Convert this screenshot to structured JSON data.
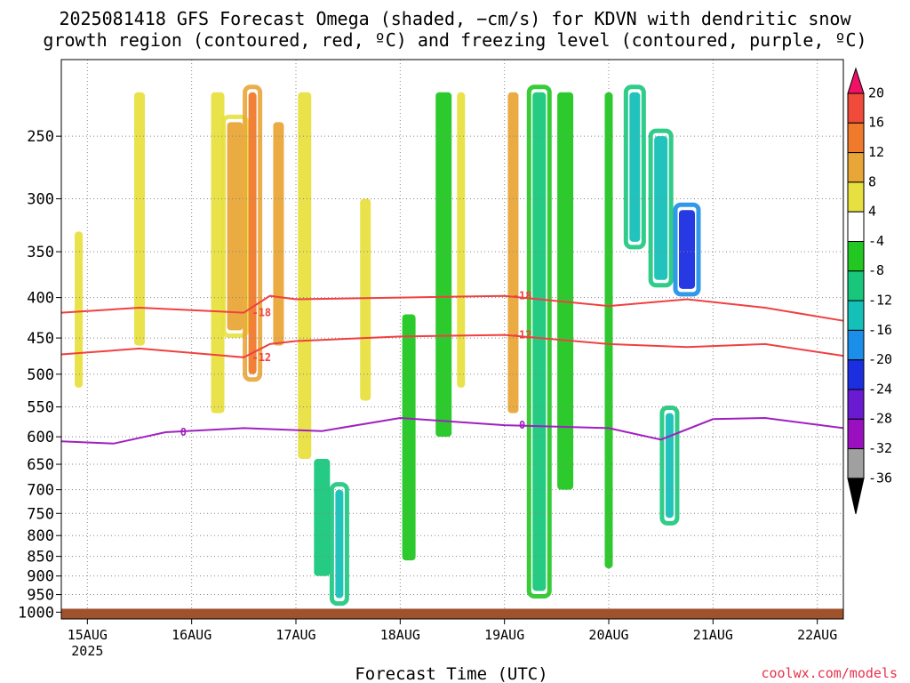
{
  "title_line1": "2025081418 GFS Forecast Omega (shaded, −cm/s) for KDVN with dendritic snow",
  "title_line2": "growth region (contoured, red, ºC) and freezing level (contoured, purple, ºC)",
  "credit": "coolwx.com/models",
  "chart_data": {
    "type": "heatmap",
    "title": "2025081418 GFS Forecast Omega (shaded, −cm/s) for KDVN with dendritic snow growth region (contoured, red, ºC) and freezing level (contoured, purple, ºC)",
    "xlabel": "Forecast Time (UTC)",
    "ylabel": "",
    "x_ticks": [
      "15AUG",
      "16AUG",
      "17AUG",
      "18AUG",
      "19AUG",
      "20AUG",
      "21AUG",
      "22AUG"
    ],
    "x_tick_year": "2025",
    "x_range": [
      "2025-08-14 18Z",
      "2025-08-22 06Z"
    ],
    "y_ticks": [
      250,
      300,
      350,
      400,
      450,
      500,
      550,
      600,
      650,
      700,
      750,
      800,
      850,
      900,
      950,
      1000
    ],
    "y_range": [
      200,
      1020
    ],
    "y_scale": "log (pressure, inverted)",
    "grid": "dotted",
    "colorbar": {
      "labels": [
        "20",
        "16",
        "12",
        "8",
        "4",
        "-4",
        "-8",
        "-12",
        "-16",
        "-20",
        "-24",
        "-28",
        "-32",
        "-36"
      ],
      "colors": [
        "#ee1166",
        "#f04a3a",
        "#f07a2c",
        "#e8a638",
        "#e8e040",
        "#ffffff",
        "#22c722",
        "#19c77c",
        "#15c0b8",
        "#1a8ee8",
        "#1b2ee0",
        "#6a1ad0",
        "#9a10c0",
        "#a0a0a0",
        "#000000"
      ]
    },
    "omega_cells": [
      {
        "x": "2025-08-14 22Z",
        "p_top": 330,
        "p_bot": 520,
        "value": 5
      },
      {
        "x": "2025-08-15 12Z",
        "p_top": 220,
        "p_bot": 460,
        "value": 6
      },
      {
        "x": "2025-08-16 06Z",
        "p_top": 220,
        "p_bot": 560,
        "value": 6
      },
      {
        "x": "2025-08-16 10Z",
        "p_top": 240,
        "p_bot": 440,
        "value": 10
      },
      {
        "x": "2025-08-16 14Z",
        "p_top": 220,
        "p_bot": 500,
        "value": 14
      },
      {
        "x": "2025-08-16 20Z",
        "p_top": 240,
        "p_bot": 460,
        "value": 9
      },
      {
        "x": "2025-08-17 02Z",
        "p_top": 220,
        "p_bot": 640,
        "value": 7
      },
      {
        "x": "2025-08-17 06Z",
        "p_top": 640,
        "p_bot": 900,
        "value": -8
      },
      {
        "x": "2025-08-17 10Z",
        "p_top": 700,
        "p_bot": 960,
        "value": -14
      },
      {
        "x": "2025-08-17 16Z",
        "p_top": 300,
        "p_bot": 540,
        "value": 6
      },
      {
        "x": "2025-08-18 02Z",
        "p_top": 420,
        "p_bot": 860,
        "value": -7
      },
      {
        "x": "2025-08-18 10Z",
        "p_top": 220,
        "p_bot": 600,
        "value": -7
      },
      {
        "x": "2025-08-18 14Z",
        "p_top": 220,
        "p_bot": 520,
        "value": 6
      },
      {
        "x": "2025-08-19 02Z",
        "p_top": 220,
        "p_bot": 560,
        "value": 8
      },
      {
        "x": "2025-08-19 08Z",
        "p_top": 220,
        "p_bot": 940,
        "value": -10
      },
      {
        "x": "2025-08-19 14Z",
        "p_top": 220,
        "p_bot": 700,
        "value": -7
      },
      {
        "x": "2025-08-20 00Z",
        "p_top": 220,
        "p_bot": 880,
        "value": -7
      },
      {
        "x": "2025-08-20 06Z",
        "p_top": 220,
        "p_bot": 340,
        "value": -14
      },
      {
        "x": "2025-08-20 12Z",
        "p_top": 250,
        "p_bot": 380,
        "value": -13
      },
      {
        "x": "2025-08-20 18Z",
        "p_top": 310,
        "p_bot": 390,
        "value": -22
      },
      {
        "x": "2025-08-20 14Z",
        "p_top": 560,
        "p_bot": 760,
        "value": -12
      }
    ],
    "contours": [
      {
        "name": "-18",
        "color": "#f04040",
        "label": "-18",
        "x": [
          "2025-08-14 18Z",
          "2025-08-15 12Z",
          "2025-08-16 12Z",
          "2025-08-16 18Z",
          "2025-08-17 00Z",
          "2025-08-18 00Z",
          "2025-08-19 00Z",
          "2025-08-20 00Z",
          "2025-08-20 18Z",
          "2025-08-21 12Z",
          "2025-08-22 06Z"
        ],
        "p": [
          418,
          412,
          418,
          398,
          402,
          400,
          398,
          410,
          402,
          412,
          428
        ]
      },
      {
        "name": "-12",
        "color": "#f04040",
        "label": "-12",
        "x": [
          "2025-08-14 18Z",
          "2025-08-15 12Z",
          "2025-08-16 12Z",
          "2025-08-16 18Z",
          "2025-08-17 00Z",
          "2025-08-18 00Z",
          "2025-08-19 00Z",
          "2025-08-20 00Z",
          "2025-08-20 18Z",
          "2025-08-21 12Z",
          "2025-08-22 06Z"
        ],
        "p": [
          472,
          464,
          476,
          458,
          454,
          448,
          446,
          458,
          462,
          458,
          474
        ]
      },
      {
        "name": "0",
        "color": "#a020c0",
        "label": "0",
        "x": [
          "2025-08-14 18Z",
          "2025-08-15 06Z",
          "2025-08-15 18Z",
          "2025-08-16 12Z",
          "2025-08-17 06Z",
          "2025-08-18 00Z",
          "2025-08-19 00Z",
          "2025-08-20 00Z",
          "2025-08-20 12Z",
          "2025-08-21 00Z",
          "2025-08-21 12Z",
          "2025-08-22 06Z"
        ],
        "p": [
          608,
          612,
          592,
          585,
          590,
          568,
          580,
          585,
          605,
          570,
          568,
          585
        ]
      }
    ]
  }
}
